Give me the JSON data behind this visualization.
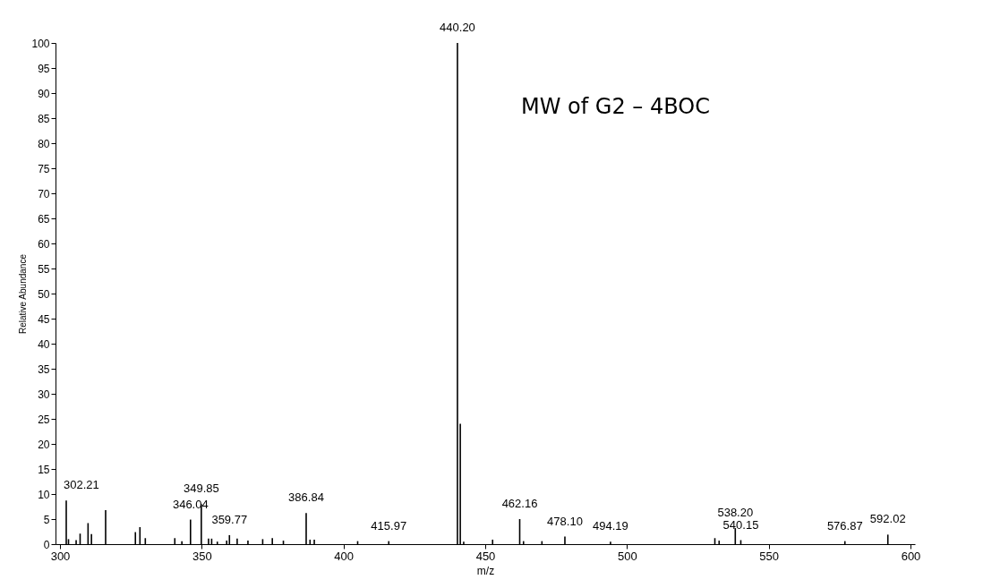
{
  "chart_data": {
    "type": "bar",
    "xlabel": "m/z",
    "ylabel": "Relative Abundance",
    "x": [
      302.21,
      303,
      305.7,
      307.1,
      309.9,
      311.1,
      316.1,
      326.6,
      328.2,
      330.1,
      340.5,
      343,
      346.04,
      349.85,
      352.4,
      353.5,
      355.5,
      358.8,
      359.77,
      362.5,
      366.3,
      371.5,
      374.9,
      378.8,
      386.84,
      388.2,
      389.7,
      405,
      415.97,
      440.2,
      441.2,
      442.4,
      452.6,
      462.16,
      463.5,
      470,
      478.1,
      494.19,
      531,
      532.5,
      538.2,
      540.15,
      576.87,
      592.02
    ],
    "values": [
      8.7,
      1,
      0.8,
      2.1,
      4.2,
      2,
      6.8,
      2.4,
      3.4,
      1.2,
      1.2,
      0.6,
      4.9,
      8,
      1.1,
      1.1,
      0.5,
      0.7,
      1.8,
      1.1,
      0.7,
      1,
      1.2,
      0.7,
      6.2,
      0.9,
      0.9,
      0.6,
      0.6,
      100,
      24,
      0.5,
      0.9,
      5,
      0.6,
      0.6,
      1.5,
      0.5,
      1.2,
      0.7,
      3.2,
      0.8,
      0.6,
      1.9
    ],
    "color": "#000000",
    "xlim": [
      300,
      600
    ],
    "xticks": [
      300,
      350,
      400,
      450,
      500,
      550,
      600
    ],
    "ylim": [
      0,
      100
    ],
    "yticks": [
      0,
      5,
      10,
      15,
      20,
      25,
      30,
      35,
      40,
      45,
      50,
      55,
      60,
      65,
      70,
      75,
      80,
      85,
      90,
      95,
      100
    ],
    "grid": false,
    "annotations": [
      "MW of G2 – 4BOC",
      {
        "text": "302.21",
        "x": 302.21,
        "y": 8.7
      },
      {
        "text": "346.04",
        "x": 346.04,
        "y": 4.9
      },
      {
        "text": "349.85",
        "x": 349.85,
        "y": 8
      },
      {
        "text": "359.77",
        "x": 359.77,
        "y": 1.8
      },
      {
        "text": "386.84",
        "x": 386.84,
        "y": 6.2
      },
      {
        "text": "415.97",
        "x": 415.97,
        "y": 0.6
      },
      {
        "text": "440.20",
        "x": 440.2,
        "y": 100
      },
      {
        "text": "462.16",
        "x": 462.16,
        "y": 5
      },
      {
        "text": "478.10",
        "x": 478.1,
        "y": 1.5
      },
      {
        "text": "494.19",
        "x": 494.19,
        "y": 0.5
      },
      {
        "text": "538.20",
        "x": 538.2,
        "y": 3.2
      },
      {
        "text": "540.15",
        "x": 540.15,
        "y": 0.8
      },
      {
        "text": "576.87",
        "x": 576.87,
        "y": 0.6
      },
      {
        "text": "592.02",
        "x": 592.02,
        "y": 1.9
      }
    ]
  }
}
